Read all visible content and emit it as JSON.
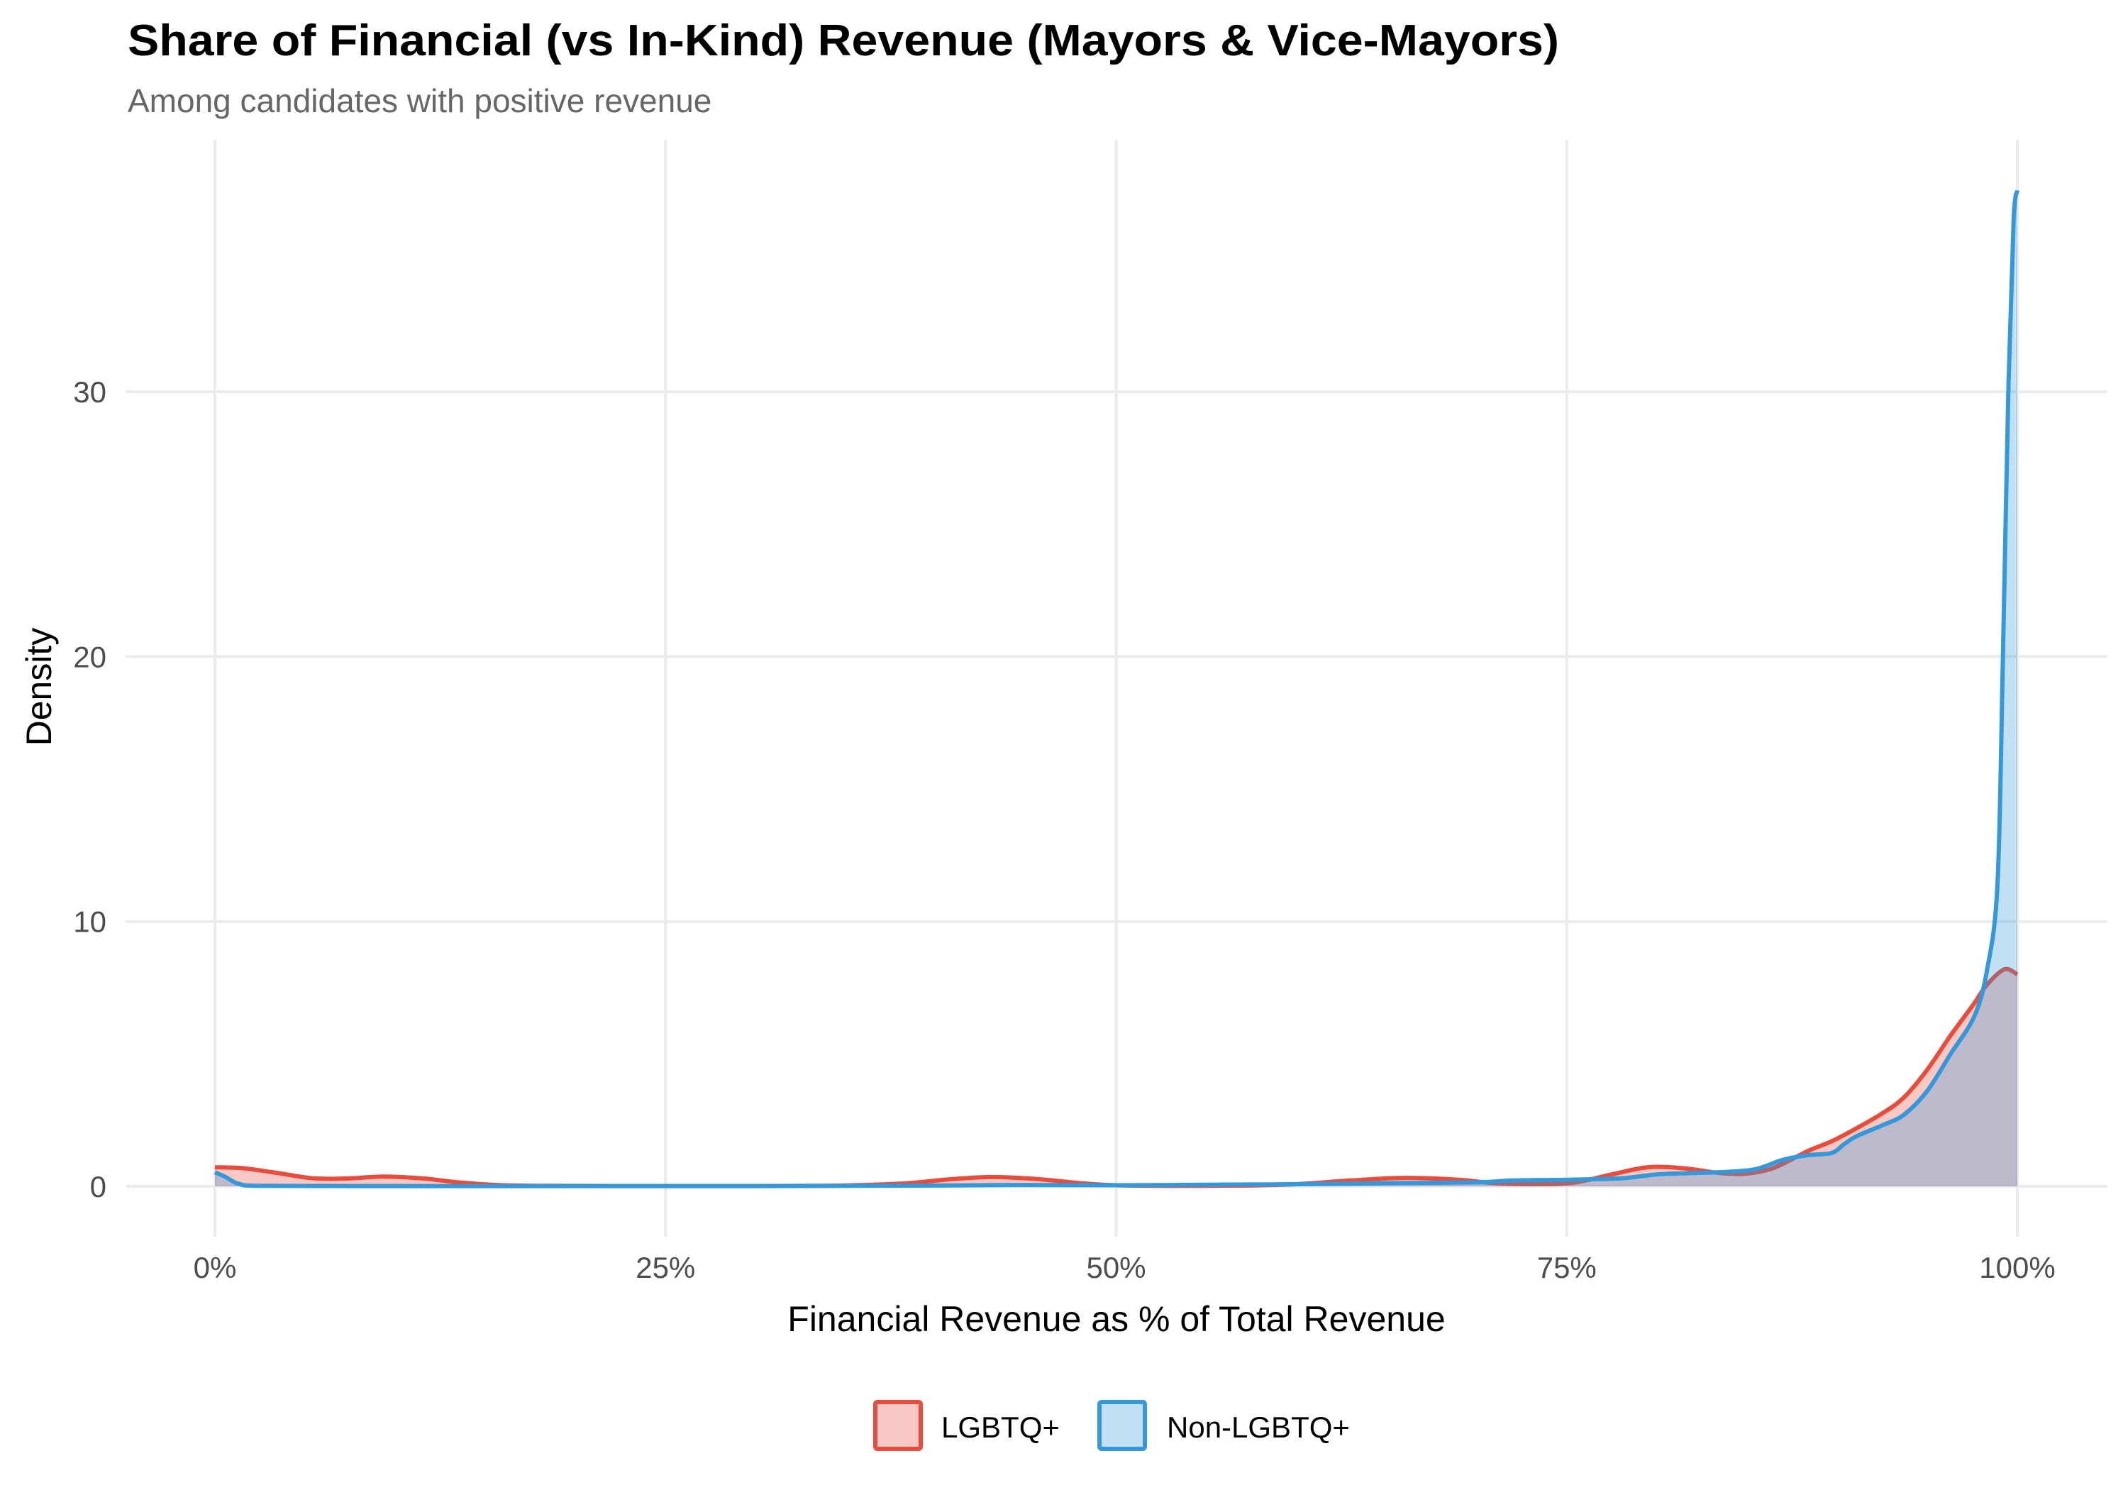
{
  "chart_data": {
    "type": "area",
    "subtype": "density",
    "title": "Share of Financial (vs In-Kind) Revenue (Mayors & Vice-Mayors)",
    "subtitle": "Among candidates with positive revenue",
    "xlabel": "Financial Revenue as % of Total Revenue",
    "ylabel": "Density",
    "xlim": [
      0,
      100
    ],
    "ylim": [
      0,
      37.6
    ],
    "x_ticks": [
      0,
      25,
      50,
      75,
      100
    ],
    "x_tick_labels": [
      "0%",
      "25%",
      "50%",
      "75%",
      "100%"
    ],
    "y_ticks": [
      0,
      10,
      20,
      30
    ],
    "y_tick_labels": [
      "0",
      "10",
      "20",
      "30"
    ],
    "grid": true,
    "legend_position": "bottom",
    "series": [
      {
        "name": "LGBTQ+",
        "line_color": "#E74C3C",
        "fill_color": "#E74C3C",
        "fill_opacity": 0.3,
        "x": [
          0,
          1.6,
          3.5,
          5.5,
          7.5,
          9.3,
          11.5,
          13.5,
          15.6,
          18,
          22,
          28,
          34,
          38,
          40.5,
          43,
          45.5,
          48,
          50,
          53,
          57,
          60,
          63,
          66,
          69,
          71,
          73.5,
          75.5,
          77.5,
          79.5,
          81.5,
          83.5,
          85,
          86.5,
          88.4,
          89.7,
          91.1,
          92.5,
          93.7,
          95,
          96.3,
          97.6,
          98.3,
          99.3,
          100
        ],
        "y": [
          0.72,
          0.68,
          0.5,
          0.3,
          0.3,
          0.37,
          0.3,
          0.15,
          0.05,
          0.02,
          0.01,
          0.01,
          0.02,
          0.1,
          0.25,
          0.35,
          0.28,
          0.12,
          0.04,
          0.02,
          0.03,
          0.08,
          0.22,
          0.32,
          0.25,
          0.12,
          0.08,
          0.15,
          0.45,
          0.72,
          0.68,
          0.5,
          0.48,
          0.7,
          1.34,
          1.7,
          2.2,
          2.75,
          3.35,
          4.4,
          5.7,
          6.9,
          7.6,
          8.2,
          8.0
        ]
      },
      {
        "name": "Non-LGBTQ+",
        "line_color": "#3498DB",
        "fill_color": "#3498DB",
        "fill_opacity": 0.3,
        "x": [
          0,
          0.6,
          1.3,
          2.5,
          10,
          20,
          30,
          40,
          45,
          50,
          55,
          60,
          65,
          70,
          72,
          75,
          78,
          80,
          82,
          84,
          85.5,
          87,
          88.4,
          89.7,
          90.4,
          91.1,
          92.5,
          93.7,
          95,
          96.3,
          97.6,
          98.3,
          98.9,
          99.2,
          99.5,
          99.8,
          100
        ],
        "y": [
          0.53,
          0.35,
          0.1,
          0.02,
          0.01,
          0.01,
          0.01,
          0.03,
          0.05,
          0.04,
          0.06,
          0.08,
          0.12,
          0.15,
          0.22,
          0.25,
          0.3,
          0.45,
          0.5,
          0.55,
          0.65,
          1.0,
          1.18,
          1.26,
          1.6,
          1.9,
          2.3,
          2.7,
          3.6,
          5.0,
          6.4,
          8.1,
          11.4,
          20,
          30,
          36.6,
          37.6
        ]
      }
    ]
  },
  "legend": {
    "items": [
      {
        "label": "LGBTQ+"
      },
      {
        "label": "Non-LGBTQ+"
      }
    ]
  }
}
